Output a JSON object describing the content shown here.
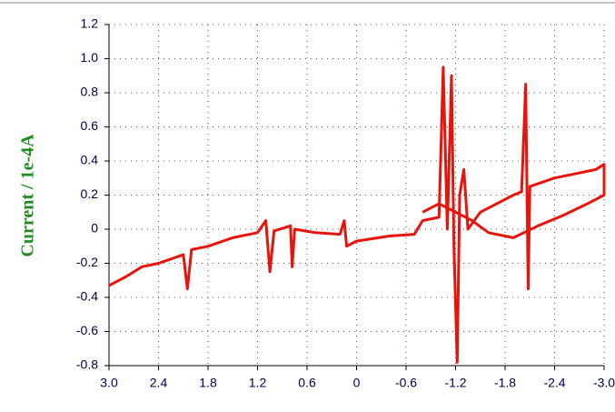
{
  "chart_data": {
    "type": "line",
    "y_label": "Current / 1e-4A",
    "xlim": [
      3,
      -3
    ],
    "ylim": [
      -0.8,
      1.2
    ],
    "xticks": [
      {
        "value": 3,
        "label": "3.0"
      },
      2.4,
      1.8,
      1.2,
      0.6,
      0,
      -0.6,
      -1.2,
      -1.8,
      -2.4,
      {
        "value": -3,
        "label": "-3.0"
      }
    ],
    "yticks": [
      {
        "value": 1.2,
        "label": "1.2"
      },
      {
        "value": 1,
        "label": "1.0"
      },
      0.8,
      0.6,
      0.4,
      0.2,
      0,
      -0.2,
      -0.4,
      -0.6,
      -0.8
    ],
    "grid": true,
    "series": [
      {
        "color": "#e8140c",
        "x": [
          3.0,
          2.8,
          2.6,
          2.4,
          2.1,
          2.05,
          2.0,
          1.8,
          1.5,
          1.2,
          1.1,
          1.05,
          1.0,
          0.8,
          0.78,
          0.75,
          0.5,
          0.2,
          0.15,
          0.12,
          0.0,
          -0.4,
          -0.7,
          -0.8,
          -1.0,
          -1.05,
          -1.1,
          -1.15,
          -1.18,
          -1.22,
          -1.25,
          -1.3,
          -1.35,
          -1.5,
          -1.7,
          -1.9,
          -2.0,
          -2.05,
          -2.08,
          -2.1,
          -2.4,
          -2.7,
          -2.9,
          -3.0,
          -3.0,
          -2.8,
          -2.5,
          -2.2,
          -1.9,
          -1.6,
          -1.4,
          -1.2,
          -1.0,
          -0.8
        ],
        "values": [
          -0.33,
          -0.28,
          -0.22,
          -0.2,
          -0.15,
          -0.35,
          -0.12,
          -0.1,
          -0.05,
          -0.02,
          0.05,
          -0.25,
          -0.01,
          0.02,
          -0.22,
          0.0,
          -0.02,
          -0.03,
          0.05,
          -0.1,
          -0.07,
          -0.04,
          -0.03,
          0.05,
          0.07,
          0.95,
          0.0,
          0.9,
          -0.1,
          -0.78,
          0.2,
          0.35,
          0.0,
          0.1,
          0.15,
          0.2,
          0.22,
          0.85,
          -0.35,
          0.25,
          0.3,
          0.33,
          0.35,
          0.38,
          0.2,
          0.15,
          0.08,
          0.02,
          -0.05,
          -0.02,
          0.05,
          0.1,
          0.15,
          0.1
        ]
      }
    ]
  }
}
